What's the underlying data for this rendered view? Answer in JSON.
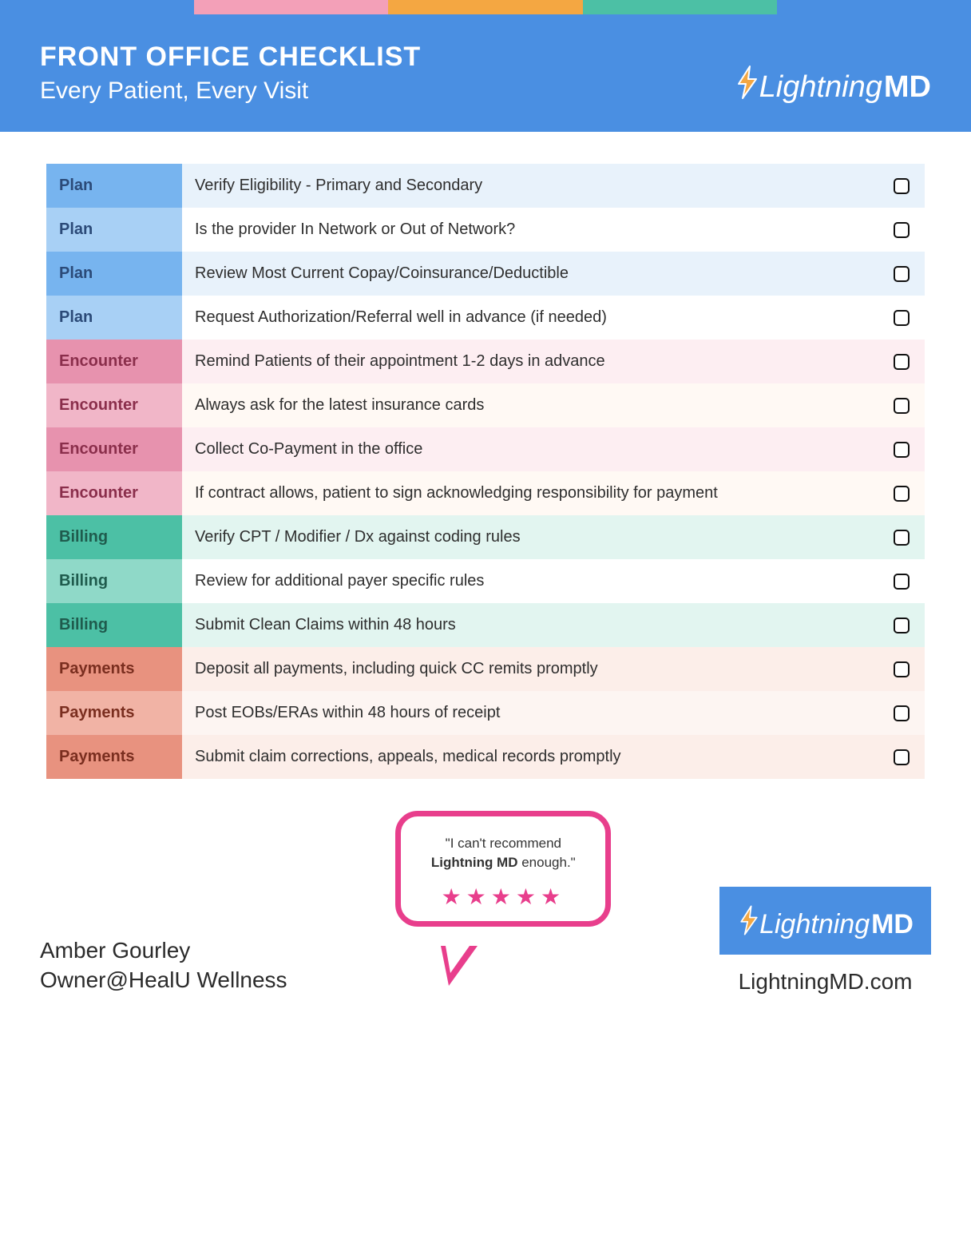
{
  "colors": {
    "stripe": [
      "#4a8fe2",
      "#f3a0b8",
      "#f4a742",
      "#4cc0a5",
      "#4a8fe2"
    ],
    "header_bg": "#4a8fe2",
    "bubble_border": "#e83e8c",
    "star_color": "#e83e8c",
    "logo_box_bg": "#4a8fe2",
    "bolt_stroke": "#ffffff",
    "bolt_fill": "#f4a742"
  },
  "header": {
    "title": "FRONT OFFICE CHECKLIST",
    "subtitle": "Every Patient, Every Visit",
    "brand_light": "Lightning",
    "brand_md": "MD"
  },
  "category_styles": {
    "Plan": {
      "label_bg_dark": "#77b4ef",
      "label_bg_light": "#a8d0f5",
      "row_dark": "#e8f2fb",
      "row_light": "#ffffff",
      "text": "#2b4a78"
    },
    "Encounter": {
      "label_bg_dark": "#e792ae",
      "label_bg_light": "#f1b6c8",
      "row_dark": "#fdeef2",
      "row_light": "#fff9f4",
      "text": "#8a2e4b"
    },
    "Billing": {
      "label_bg_dark": "#4cc0a5",
      "label_bg_light": "#8fd9c8",
      "row_dark": "#e2f5f0",
      "row_light": "#ffffff",
      "text": "#1f5b4d"
    },
    "Payments": {
      "label_bg_dark": "#e8927f",
      "label_bg_light": "#f1b3a5",
      "row_dark": "#fceee9",
      "row_light": "#fdf5f2",
      "text": "#7a2e1f"
    }
  },
  "rows": [
    {
      "cat": "Plan",
      "text": "Verify Eligibility - Primary and Secondary"
    },
    {
      "cat": "Plan",
      "text": "Is the provider In Network or Out of Network?"
    },
    {
      "cat": "Plan",
      "text": "Review Most Current Copay/Coinsurance/Deductible"
    },
    {
      "cat": "Plan",
      "text": "Request Authorization/Referral well in advance (if needed)"
    },
    {
      "cat": "Encounter",
      "text": "Remind Patients of their appointment 1-2 days in advance"
    },
    {
      "cat": "Encounter",
      "text": "Always ask for the latest insurance cards"
    },
    {
      "cat": "Encounter",
      "text": "Collect Co-Payment in the office"
    },
    {
      "cat": "Encounter",
      "text": "If contract allows, patient to sign acknowledging responsibility for payment"
    },
    {
      "cat": "Billing",
      "text": "Verify CPT / Modifier / Dx against coding rules"
    },
    {
      "cat": "Billing",
      "text": "Review for additional payer specific rules"
    },
    {
      "cat": "Billing",
      "text": "Submit Clean Claims within 48 hours"
    },
    {
      "cat": "Payments",
      "text": "Deposit all payments, including quick CC remits promptly"
    },
    {
      "cat": "Payments",
      "text": "Post EOBs/ERAs within 48 hours of receipt"
    },
    {
      "cat": "Payments",
      "text": "Submit claim corrections, appeals, medical records promptly"
    }
  ],
  "footer": {
    "name": "Amber Gourley",
    "org": "Owner@HealU Wellness",
    "quote_pre": "\"I can't recommend ",
    "quote_bold": "Lightning MD",
    "quote_post": " enough.\"",
    "stars": "★★★★★",
    "url": "LightningMD.com"
  }
}
